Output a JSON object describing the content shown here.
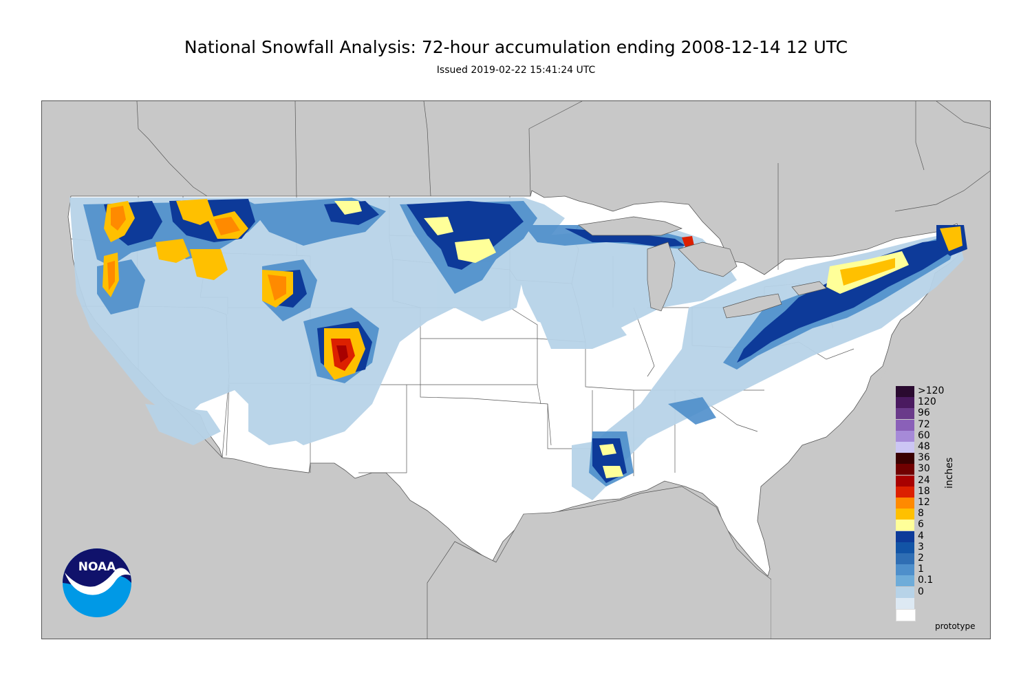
{
  "header": {
    "title": "National Snowfall Analysis: 72-hour accumulation ending 2008-12-14 12 UTC",
    "subtitle": "Issued 2019-02-22 15:41:24 UTC"
  },
  "legend": {
    "units": "inches",
    "entries": [
      {
        "label": ">120",
        "color": "#2a0a30"
      },
      {
        "label": "120",
        "color": "#4a1a60"
      },
      {
        "label": "96",
        "color": "#6a3a8a"
      },
      {
        "label": "72",
        "color": "#8a60b8"
      },
      {
        "label": "60",
        "color": "#a68ad8"
      },
      {
        "label": "48",
        "color": "#ccc6f4"
      },
      {
        "label": "36",
        "color": "#3a0000"
      },
      {
        "label": "30",
        "color": "#700000"
      },
      {
        "label": "24",
        "color": "#a80000"
      },
      {
        "label": "18",
        "color": "#dc2000"
      },
      {
        "label": "12",
        "color": "#ff8a00"
      },
      {
        "label": "8",
        "color": "#ffc000"
      },
      {
        "label": "6",
        "color": "#ffff99"
      },
      {
        "label": "4",
        "color": "#0d3a99"
      },
      {
        "label": "3",
        "color": "#1254a6"
      },
      {
        "label": "2",
        "color": "#2f6eb4"
      },
      {
        "label": "1",
        "color": "#4e8fcb"
      },
      {
        "label": "0.1",
        "color": "#6eacd9"
      },
      {
        "label": "0",
        "color": "#b7d3e8"
      },
      {
        "label": "",
        "color": "#dde9f3"
      },
      {
        "label": "",
        "color": "#ffffff"
      }
    ]
  },
  "footer": {
    "note": "prototype"
  },
  "logo": {
    "text": "NOAA",
    "icon": "noaa-logo-icon"
  },
  "colors": {
    "land_outside": "#c8c8c8",
    "conus_background": "#ffffff",
    "light_snow": "#b7d3e8",
    "moderate_snow": "#4e8fcb",
    "heavy_snow": "#0d3a99",
    "very_heavy_snow": "#ffff99",
    "extreme_snow": "#ff8a00"
  }
}
